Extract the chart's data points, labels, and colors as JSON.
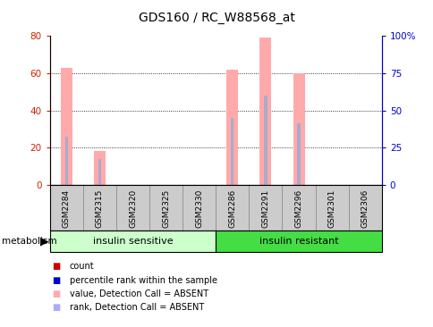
{
  "title": "GDS160 / RC_W88568_at",
  "samples": [
    "GSM2284",
    "GSM2315",
    "GSM2320",
    "GSM2325",
    "GSM2330",
    "GSM2286",
    "GSM2291",
    "GSM2296",
    "GSM2301",
    "GSM2306"
  ],
  "pink_bar_values": [
    63,
    18,
    0,
    0,
    0,
    62,
    79,
    60,
    0,
    0
  ],
  "blue_dot_values": [
    26,
    14,
    0,
    0,
    0,
    36,
    48,
    33,
    0,
    0
  ],
  "ylim_left": [
    0,
    80
  ],
  "ylim_right": [
    0,
    100
  ],
  "yticks_left": [
    0,
    20,
    40,
    60,
    80
  ],
  "ytick_labels_left": [
    "0",
    "20",
    "40",
    "60",
    "80"
  ],
  "yticks_right": [
    0,
    25,
    50,
    75,
    100
  ],
  "ytick_labels_right": [
    "0",
    "25",
    "50",
    "75",
    "100%"
  ],
  "group1_label": "insulin sensitive",
  "group2_label": "insulin resistant",
  "group1_color": "#ccffcc",
  "group2_color": "#44dd44",
  "metabolism_label": "metabolism",
  "legend_items": [
    {
      "color": "#cc0000",
      "label": "count"
    },
    {
      "color": "#0000cc",
      "label": "percentile rank within the sample"
    },
    {
      "color": "#ffaaaa",
      "label": "value, Detection Call = ABSENT"
    },
    {
      "color": "#aaaaff",
      "label": "rank, Detection Call = ABSENT"
    }
  ],
  "pink_color": "#ffaaaa",
  "blue_color": "#aaaacc",
  "left_tick_color": "#cc2200",
  "right_tick_color": "#0000cc",
  "bar_width": 0.35,
  "xlabel_box_color": "#cccccc",
  "xlabel_box_edge": "#888888"
}
